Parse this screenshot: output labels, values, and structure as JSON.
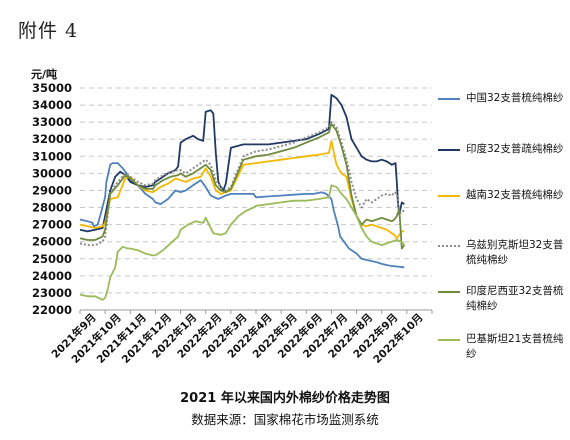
{
  "header": {
    "attachment": "附件 4"
  },
  "chart_data": {
    "type": "line",
    "unit_label": "元/吨",
    "title": "2021 年以来国内外棉纱价格走势图",
    "source": "数据来源：国家棉花市场监测系统",
    "ylim": [
      22000,
      35000
    ],
    "y_ticks": [
      "22000",
      "23000",
      "24000",
      "25000",
      "26000",
      "27000",
      "28000",
      "29000",
      "30000",
      "31000",
      "32000",
      "33000",
      "34000",
      "35000"
    ],
    "x_tick_labels": [
      "2021年9月",
      "2021年10月",
      "2021年11月",
      "2021年12月",
      "2022年1月",
      "2022年2月",
      "2022年3月",
      "2022年4月",
      "2022年5月",
      "2022年6月",
      "2022年7月",
      "2022年8月",
      "2022年9月",
      "2022年10月"
    ],
    "grid": "horizontal-dashed",
    "legend_position": "right",
    "series": [
      {
        "name": "中国32支普梳纯棉纱",
        "color": "#4f81bd",
        "style": "solid",
        "x": [
          0,
          0.3,
          0.5,
          0.55,
          0.7,
          0.8,
          1.0,
          1.05,
          1.2,
          1.3,
          1.5,
          1.7,
          1.9,
          2.0,
          2.3,
          2.6,
          2.9,
          3.0,
          3.2,
          3.5,
          3.8,
          4.0,
          4.2,
          4.5,
          4.8,
          5.0,
          5.2,
          5.5,
          5.8,
          6.0,
          6.3,
          6.6,
          6.9,
          7.0,
          7.5,
          8.0,
          8.5,
          9.0,
          9.3,
          9.6,
          9.8,
          10.0,
          10.1,
          10.25,
          10.35,
          10.5,
          10.6,
          10.7,
          10.9,
          11.0,
          11.2,
          11.5,
          11.8,
          12.0,
          12.3,
          12.6,
          12.9
        ],
        "y": [
          27300,
          27200,
          27100,
          26900,
          27000,
          27500,
          28600,
          29500,
          30500,
          30600,
          30600,
          30300,
          29900,
          29600,
          29300,
          28800,
          28500,
          28300,
          28200,
          28500,
          29000,
          28900,
          29000,
          29300,
          29600,
          29200,
          28700,
          28500,
          28700,
          28800,
          28800,
          28800,
          28800,
          28600,
          28650,
          28700,
          28750,
          28800,
          28800,
          28900,
          28800,
          28500,
          27800,
          27000,
          26300,
          26000,
          25800,
          25600,
          25400,
          25300,
          25000,
          24900,
          24800,
          24700,
          24600,
          24550,
          24500
        ]
      },
      {
        "name": "印度32支普疏纯棉纱",
        "color": "#1f3864",
        "style": "solid",
        "x": [
          0,
          0.3,
          0.6,
          0.9,
          1.0,
          1.2,
          1.4,
          1.6,
          1.8,
          2.0,
          2.3,
          2.6,
          2.9,
          3.0,
          3.2,
          3.5,
          3.8,
          3.9,
          4.0,
          4.2,
          4.5,
          4.7,
          4.9,
          5.0,
          5.2,
          5.3,
          5.4,
          5.5,
          5.6,
          5.7,
          5.8,
          6.0,
          6.5,
          7.0,
          7.5,
          8.0,
          8.5,
          9.0,
          9.5,
          9.9,
          10.0,
          10.2,
          10.4,
          10.6,
          10.8,
          11.0,
          11.2,
          11.4,
          11.6,
          11.8,
          12.0,
          12.2,
          12.4,
          12.55,
          12.6,
          12.65,
          12.7,
          12.8,
          12.9
        ],
        "y": [
          26700,
          26600,
          26700,
          26800,
          27500,
          29000,
          29800,
          30100,
          29900,
          29500,
          29300,
          29200,
          29300,
          29500,
          29700,
          30000,
          30200,
          30400,
          31800,
          32000,
          32200,
          32000,
          31900,
          33600,
          33700,
          33500,
          31200,
          29500,
          29200,
          29000,
          29400,
          31500,
          31700,
          31700,
          31700,
          31800,
          31900,
          32000,
          32300,
          32600,
          34600,
          34400,
          34000,
          33300,
          32000,
          31500,
          31000,
          30800,
          30700,
          30700,
          30800,
          30700,
          30500,
          30600,
          29500,
          28200,
          27600,
          28300,
          28200
        ]
      },
      {
        "name": "越南32支普梳纯棉纱",
        "color": "#f4b800",
        "style": "solid",
        "x": [
          0,
          0.3,
          0.6,
          0.9,
          1.0,
          1.2,
          1.5,
          1.8,
          2.0,
          2.3,
          2.6,
          2.9,
          3.0,
          3.2,
          3.5,
          3.8,
          4.0,
          4.2,
          4.5,
          4.8,
          5.0,
          5.2,
          5.4,
          5.6,
          5.8,
          6.0,
          6.5,
          7.0,
          7.5,
          8.0,
          8.5,
          9.0,
          9.5,
          9.9,
          10.0,
          10.2,
          10.4,
          10.6,
          10.8,
          11.0,
          11.2,
          11.4,
          11.6,
          11.8,
          12.0,
          12.2,
          12.4,
          12.5,
          12.6,
          12.7,
          12.8,
          12.9
        ],
        "y": [
          27000,
          26900,
          26800,
          26900,
          27100,
          28500,
          28600,
          29700,
          29800,
          29300,
          29000,
          28900,
          29000,
          29200,
          29400,
          29700,
          29600,
          29500,
          29700,
          29800,
          30300,
          29800,
          29000,
          28800,
          28900,
          29000,
          30500,
          30600,
          30700,
          30800,
          30900,
          31000,
          31100,
          31200,
          31900,
          30500,
          30000,
          29800,
          28500,
          27500,
          27000,
          26900,
          27000,
          26900,
          26800,
          26700,
          26500,
          26400,
          26200,
          26400,
          26600,
          26600
        ]
      },
      {
        "name": "乌兹别克斯坦32支普梳纯棉纱",
        "color": "#8c8c8c",
        "style": "dotted",
        "x": [
          0,
          0.3,
          0.6,
          0.9,
          1.0,
          1.2,
          1.5,
          1.8,
          2.0,
          2.3,
          2.6,
          2.9,
          3.0,
          3.3,
          3.6,
          3.9,
          4.0,
          4.2,
          4.5,
          4.8,
          5.0,
          5.2,
          5.4,
          5.6,
          5.8,
          6.0,
          6.5,
          7.0,
          7.5,
          8.0,
          8.5,
          9.0,
          9.5,
          9.9,
          10.0,
          10.2,
          10.4,
          10.6,
          10.8,
          11.0,
          11.2,
          11.4,
          11.6,
          11.8,
          12.0,
          12.2,
          12.4,
          12.5,
          12.6,
          12.7,
          12.8,
          12.9
        ],
        "y": [
          25900,
          25800,
          25800,
          26000,
          26300,
          28900,
          29500,
          30000,
          29800,
          29500,
          29300,
          29400,
          29600,
          29900,
          30100,
          30200,
          30200,
          30000,
          30300,
          30600,
          30800,
          30500,
          29600,
          29200,
          29000,
          29200,
          31000,
          31300,
          31400,
          31600,
          31800,
          32100,
          32400,
          32700,
          33000,
          32700,
          31800,
          30800,
          29500,
          28500,
          28000,
          28500,
          28300,
          28500,
          28700,
          28800,
          28700,
          28900,
          28800,
          27600,
          27800,
          27800
        ]
      },
      {
        "name": "印度尼西亚32支普梳纯棉纱",
        "color": "#6e8b3d",
        "style": "solid",
        "x": [
          0,
          0.3,
          0.6,
          0.9,
          1.0,
          1.2,
          1.5,
          1.8,
          2.0,
          2.3,
          2.6,
          2.9,
          3.0,
          3.3,
          3.6,
          3.9,
          4.0,
          4.2,
          4.5,
          4.8,
          5.0,
          5.2,
          5.4,
          5.6,
          5.8,
          6.0,
          6.5,
          7.0,
          7.5,
          8.0,
          8.5,
          9.0,
          9.5,
          9.9,
          10.0,
          10.2,
          10.4,
          10.6,
          10.8,
          11.0,
          11.2,
          11.4,
          11.6,
          11.8,
          12.0,
          12.2,
          12.4,
          12.5,
          12.6,
          12.7,
          12.8,
          12.9
        ],
        "y": [
          26200,
          26100,
          26100,
          26300,
          26700,
          28800,
          29300,
          29900,
          29700,
          29300,
          29100,
          29100,
          29300,
          29600,
          29800,
          29900,
          30000,
          29800,
          30000,
          30300,
          30500,
          30200,
          29300,
          29000,
          28900,
          29100,
          30800,
          31000,
          31100,
          31300,
          31500,
          31800,
          32100,
          32400,
          32900,
          32500,
          31600,
          30500,
          28700,
          27500,
          27000,
          27300,
          27200,
          27300,
          27400,
          27300,
          27200,
          27300,
          27500,
          27900,
          25600,
          25800
        ]
      },
      {
        "name": "巴基斯坦21支普梳纯纱",
        "color": "#9bbb59",
        "style": "solid",
        "x": [
          0,
          0.3,
          0.6,
          0.9,
          1.0,
          1.1,
          1.2,
          1.4,
          1.5,
          1.7,
          1.9,
          2.0,
          2.3,
          2.6,
          2.9,
          3.0,
          3.3,
          3.6,
          3.9,
          4.0,
          4.3,
          4.6,
          4.9,
          5.0,
          5.3,
          5.6,
          5.8,
          6.0,
          6.3,
          6.6,
          6.9,
          7.0,
          7.5,
          8.0,
          8.5,
          9.0,
          9.5,
          9.9,
          10.0,
          10.2,
          10.4,
          10.6,
          10.8,
          11.0,
          11.2,
          11.4,
          11.6,
          11.8,
          12.0,
          12.2,
          12.4,
          12.6,
          12.8,
          12.9
        ],
        "y": [
          22900,
          22800,
          22800,
          22600,
          22700,
          23200,
          23900,
          24500,
          25400,
          25700,
          25600,
          25600,
          25500,
          25300,
          25200,
          25200,
          25500,
          25900,
          26300,
          26700,
          27000,
          27200,
          27100,
          27400,
          26500,
          26400,
          26500,
          27000,
          27500,
          27800,
          28000,
          28100,
          28200,
          28300,
          28400,
          28400,
          28500,
          28600,
          29300,
          29200,
          28800,
          28500,
          28000,
          27500,
          26800,
          26300,
          26000,
          25900,
          25800,
          25900,
          26000,
          26100,
          26000,
          25800
        ]
      }
    ]
  }
}
